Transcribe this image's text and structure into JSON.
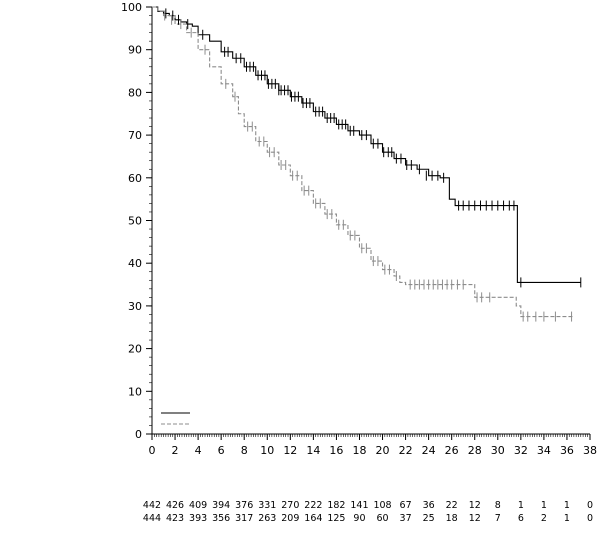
{
  "chart_data": {
    "type": "line",
    "subtype": "kaplan-meier",
    "title": "",
    "xlabel": "",
    "ylabel": "",
    "xlim": [
      0,
      38
    ],
    "ylim": [
      0,
      100
    ],
    "x_ticks": [
      0,
      2,
      4,
      6,
      8,
      10,
      12,
      14,
      16,
      18,
      20,
      22,
      24,
      26,
      28,
      30,
      32,
      34,
      36,
      38
    ],
    "x_tick_labels": [
      "0",
      "2",
      "4",
      "6",
      "8",
      "10",
      "12",
      "14",
      "16",
      "18",
      "20",
      "22",
      "24",
      "26",
      "28",
      "30",
      "32",
      "34",
      "36",
      "38"
    ],
    "y_ticks": [
      0,
      10,
      20,
      30,
      40,
      50,
      60,
      70,
      80,
      90,
      100
    ],
    "y_tick_labels": [
      "0",
      "10",
      "20",
      "30",
      "40",
      "50",
      "60",
      "70",
      "80",
      "90",
      "100"
    ],
    "grid": false,
    "legend": {
      "placement": "bottom-left",
      "entries": [
        {
          "style": "solid",
          "color": "#000000",
          "text": ""
        },
        {
          "style": "dashed",
          "color": "#8c8c8c",
          "text": ""
        }
      ]
    },
    "series": [
      {
        "line_style": "solid",
        "color": "#000000",
        "x": [
          0,
          0.5,
          1.0,
          1.5,
          2.0,
          2.5,
          3.0,
          3.5,
          4.0,
          5.0,
          6.0,
          7.0,
          8.0,
          9.0,
          10.0,
          11.0,
          12.0,
          13.0,
          14.0,
          15.0,
          16.0,
          17.0,
          18.0,
          19.0,
          20.0,
          21.0,
          22.0,
          23.0,
          24.0,
          25.0,
          25.8,
          26.3,
          31.6,
          31.7,
          37.2
        ],
        "y": [
          100,
          99,
          98.5,
          98,
          97,
          96.5,
          96,
          95.5,
          93.5,
          92,
          89.5,
          88,
          86,
          84,
          82,
          80.5,
          79,
          77.5,
          75.5,
          74,
          72.5,
          71,
          70,
          68,
          66,
          64.5,
          63,
          62,
          60.5,
          60,
          55,
          53.5,
          53.5,
          35.5,
          35.5
        ]
      },
      {
        "line_style": "dashed",
        "color": "#8c8c8c",
        "x": [
          0,
          0.5,
          1.0,
          2.0,
          3.0,
          4.0,
          5.0,
          6.0,
          7.0,
          7.5,
          8.0,
          9.0,
          10.0,
          11.0,
          12.0,
          13.0,
          14.0,
          15.0,
          16.0,
          17.0,
          18.0,
          19.0,
          20.0,
          21.0,
          21.5,
          22.0,
          27.0,
          28.0,
          30.0,
          31.6,
          32.0,
          36.5
        ],
        "y": [
          100,
          99,
          98,
          96,
          94,
          90,
          86,
          82,
          79,
          75,
          72,
          68.5,
          66,
          63,
          60.5,
          57,
          54,
          51.5,
          49,
          46.5,
          43.5,
          40.5,
          38.5,
          37,
          35.5,
          35,
          35,
          32,
          32,
          30,
          27.5,
          27.5
        ]
      }
    ],
    "censor_marks": [
      {
        "series": 0,
        "points": [
          [
            1.2,
            98.5
          ],
          [
            1.8,
            98
          ],
          [
            2.3,
            97
          ],
          [
            3.1,
            96
          ],
          [
            4.4,
            93.5
          ],
          [
            6.3,
            89.5
          ],
          [
            6.6,
            89.5
          ],
          [
            7.3,
            88
          ],
          [
            7.7,
            88
          ],
          [
            8.2,
            86
          ],
          [
            8.5,
            86
          ],
          [
            8.8,
            86
          ],
          [
            9.2,
            84
          ],
          [
            9.5,
            84
          ],
          [
            9.8,
            84
          ],
          [
            10.1,
            82
          ],
          [
            10.4,
            82
          ],
          [
            10.7,
            82
          ],
          [
            11.0,
            80.5
          ],
          [
            11.2,
            80.5
          ],
          [
            11.5,
            80.5
          ],
          [
            11.8,
            80.5
          ],
          [
            12.1,
            79
          ],
          [
            12.4,
            79
          ],
          [
            12.7,
            79
          ],
          [
            13.1,
            77.5
          ],
          [
            13.4,
            77.5
          ],
          [
            13.7,
            77.5
          ],
          [
            14.2,
            75.5
          ],
          [
            14.5,
            75.5
          ],
          [
            14.8,
            75.5
          ],
          [
            15.2,
            74
          ],
          [
            15.5,
            74
          ],
          [
            15.8,
            74
          ],
          [
            16.2,
            72.5
          ],
          [
            16.5,
            72.5
          ],
          [
            16.8,
            72.5
          ],
          [
            17.2,
            71
          ],
          [
            17.5,
            71
          ],
          [
            18.2,
            70
          ],
          [
            18.6,
            70
          ],
          [
            19.2,
            68
          ],
          [
            19.6,
            68
          ],
          [
            20.1,
            66
          ],
          [
            20.5,
            66
          ],
          [
            20.8,
            66
          ],
          [
            21.2,
            64.5
          ],
          [
            21.6,
            64.5
          ],
          [
            22.1,
            63
          ],
          [
            22.5,
            63
          ],
          [
            23.2,
            62
          ],
          [
            23.8,
            60.5
          ],
          [
            24.3,
            60.5
          ],
          [
            24.8,
            60.5
          ],
          [
            25.3,
            60
          ],
          [
            26.6,
            53.5
          ],
          [
            27.0,
            53.5
          ],
          [
            27.5,
            53.5
          ],
          [
            28.0,
            53.5
          ],
          [
            28.5,
            53.5
          ],
          [
            29.0,
            53.5
          ],
          [
            29.5,
            53.5
          ],
          [
            30.0,
            53.5
          ],
          [
            30.5,
            53.5
          ],
          [
            31.0,
            53.5
          ],
          [
            31.4,
            53.5
          ],
          [
            32.0,
            35.5
          ],
          [
            37.2,
            35.5
          ]
        ]
      },
      {
        "series": 1,
        "points": [
          [
            1.1,
            98
          ],
          [
            1.7,
            97
          ],
          [
            2.5,
            96
          ],
          [
            3.4,
            94
          ],
          [
            4.6,
            90
          ],
          [
            6.4,
            82
          ],
          [
            7.2,
            79
          ],
          [
            8.3,
            72
          ],
          [
            8.7,
            72
          ],
          [
            9.3,
            68.5
          ],
          [
            9.7,
            68.5
          ],
          [
            10.2,
            66
          ],
          [
            10.6,
            66
          ],
          [
            11.2,
            63
          ],
          [
            11.6,
            63
          ],
          [
            12.2,
            60.5
          ],
          [
            12.6,
            60.5
          ],
          [
            13.2,
            57
          ],
          [
            13.6,
            57
          ],
          [
            14.2,
            54
          ],
          [
            14.6,
            54
          ],
          [
            15.2,
            51.5
          ],
          [
            15.6,
            51.5
          ],
          [
            16.2,
            49
          ],
          [
            16.6,
            49
          ],
          [
            17.2,
            46.5
          ],
          [
            17.6,
            46.5
          ],
          [
            18.2,
            43.5
          ],
          [
            18.6,
            43.5
          ],
          [
            19.2,
            40.5
          ],
          [
            19.6,
            40.5
          ],
          [
            20.2,
            38.5
          ],
          [
            20.6,
            38.5
          ],
          [
            21.2,
            37
          ],
          [
            22.4,
            35
          ],
          [
            22.8,
            35
          ],
          [
            23.2,
            35
          ],
          [
            23.6,
            35
          ],
          [
            24.0,
            35
          ],
          [
            24.4,
            35
          ],
          [
            24.8,
            35
          ],
          [
            25.2,
            35
          ],
          [
            25.6,
            35
          ],
          [
            26.0,
            35
          ],
          [
            26.5,
            35
          ],
          [
            27.0,
            35
          ],
          [
            28.2,
            32
          ],
          [
            28.6,
            32
          ],
          [
            29.3,
            32
          ],
          [
            32.2,
            27.5
          ],
          [
            32.6,
            27.5
          ],
          [
            33.3,
            27.5
          ],
          [
            34.0,
            27.5
          ],
          [
            35.0,
            27.5
          ],
          [
            36.4,
            27.5
          ]
        ]
      }
    ],
    "risk_table": {
      "columns_at_x": [
        0,
        2,
        4,
        6,
        8,
        10,
        12,
        14,
        16,
        18,
        20,
        22,
        24,
        26,
        28,
        30,
        32,
        34,
        36,
        38
      ],
      "rows": [
        [
          "442",
          "426",
          "409",
          "394",
          "376",
          "331",
          "270",
          "222",
          "182",
          "141",
          "108",
          "67",
          "36",
          "22",
          "12",
          "8",
          "1",
          "1",
          "1",
          "0"
        ],
        [
          "444",
          "423",
          "393",
          "356",
          "317",
          "263",
          "209",
          "164",
          "125",
          "90",
          "60",
          "37",
          "25",
          "18",
          "12",
          "7",
          "6",
          "2",
          "1",
          "0"
        ]
      ]
    }
  }
}
